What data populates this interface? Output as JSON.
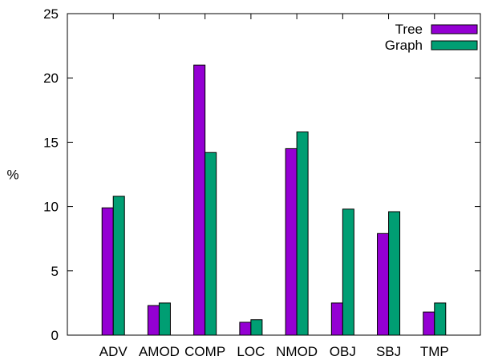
{
  "chart_data": {
    "type": "bar",
    "title": "",
    "xlabel": "",
    "ylabel": "%",
    "ylim": [
      0,
      25
    ],
    "yticks": [
      0,
      5,
      10,
      15,
      20,
      25
    ],
    "grid": false,
    "legend_position": "top-right",
    "categories": [
      "ADV",
      "AMOD",
      "COMP",
      "LOC",
      "NMOD",
      "OBJ",
      "SBJ",
      "TMP"
    ],
    "series": [
      {
        "name": "Tree",
        "color": "#9400d3",
        "values": [
          9.9,
          2.3,
          21.0,
          1.0,
          14.5,
          2.5,
          7.9,
          1.8
        ]
      },
      {
        "name": "Graph",
        "color": "#009e73",
        "values": [
          10.8,
          2.5,
          14.2,
          1.2,
          15.8,
          9.8,
          9.6,
          2.5
        ]
      }
    ]
  }
}
